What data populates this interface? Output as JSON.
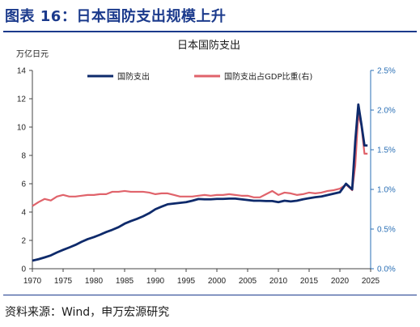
{
  "figure_title": "图表 16：日本国防支出规模上升",
  "source": "资料来源：Wind，申万宏源研究",
  "colors": {
    "spending": "#0e2a6b",
    "ratio": "#e0636b",
    "right_axis": "#2a6fb5",
    "header": "#1b3a8c"
  },
  "chart_data": {
    "type": "line",
    "title": "日本国防支出",
    "left_axis": {
      "unit": "万亿日元",
      "min": 0,
      "max": 14,
      "ticks": [
        0,
        2,
        4,
        6,
        8,
        10,
        12,
        14
      ]
    },
    "right_axis": {
      "min": 0,
      "max": 2.5,
      "ticks": [
        "0.0%",
        "0.5%",
        "1.0%",
        "1.5%",
        "2.0%",
        "2.5%"
      ]
    },
    "x_axis": {
      "min": 1970,
      "max": 2025,
      "ticks": [
        1970,
        1975,
        1980,
        1985,
        1990,
        1995,
        2000,
        2005,
        2010,
        2015,
        2020,
        2025
      ]
    },
    "legend_position": "top",
    "series": [
      {
        "name": "国防支出",
        "axis": "left",
        "x": [
          1970,
          1971,
          1972,
          1973,
          1974,
          1975,
          1976,
          1977,
          1978,
          1979,
          1980,
          1981,
          1982,
          1983,
          1984,
          1985,
          1986,
          1987,
          1988,
          1989,
          1990,
          1991,
          1992,
          1993,
          1994,
          1995,
          1996,
          1997,
          1998,
          1999,
          2000,
          2001,
          2002,
          2003,
          2004,
          2005,
          2006,
          2007,
          2008,
          2009,
          2010,
          2011,
          2012,
          2013,
          2014,
          2015,
          2016,
          2017,
          2018,
          2019,
          2020,
          2021,
          2022,
          2022.5,
          2023,
          2023.5,
          2024,
          2024.5
        ],
        "values": [
          0.57,
          0.67,
          0.8,
          0.94,
          1.15,
          1.33,
          1.5,
          1.68,
          1.9,
          2.09,
          2.23,
          2.4,
          2.59,
          2.75,
          2.93,
          3.18,
          3.36,
          3.52,
          3.7,
          3.92,
          4.2,
          4.38,
          4.55,
          4.6,
          4.65,
          4.7,
          4.8,
          4.92,
          4.9,
          4.9,
          4.93,
          4.93,
          4.95,
          4.95,
          4.9,
          4.85,
          4.8,
          4.8,
          4.78,
          4.78,
          4.7,
          4.8,
          4.75,
          4.8,
          4.9,
          4.98,
          5.05,
          5.1,
          5.2,
          5.3,
          5.4,
          6.0,
          5.6,
          9.0,
          11.6,
          10.2,
          8.7,
          8.7
        ]
      },
      {
        "name": "国防支出占GDP比重(右)",
        "axis": "right",
        "x": [
          1970,
          1971,
          1972,
          1973,
          1974,
          1975,
          1976,
          1977,
          1978,
          1979,
          1980,
          1981,
          1982,
          1983,
          1984,
          1985,
          1986,
          1987,
          1988,
          1989,
          1990,
          1991,
          1992,
          1993,
          1994,
          1995,
          1996,
          1997,
          1998,
          1999,
          2000,
          2001,
          2002,
          2003,
          2004,
          2005,
          2006,
          2007,
          2008,
          2009,
          2010,
          2011,
          2012,
          2013,
          2014,
          2015,
          2016,
          2017,
          2018,
          2019,
          2020,
          2021,
          2022,
          2022.5,
          2023,
          2023.5,
          2024,
          2024.5
        ],
        "values": [
          0.79,
          0.84,
          0.88,
          0.86,
          0.91,
          0.93,
          0.91,
          0.91,
          0.92,
          0.93,
          0.93,
          0.94,
          0.94,
          0.97,
          0.97,
          0.98,
          0.97,
          0.97,
          0.97,
          0.96,
          0.94,
          0.95,
          0.95,
          0.93,
          0.91,
          0.91,
          0.91,
          0.92,
          0.93,
          0.92,
          0.93,
          0.93,
          0.94,
          0.93,
          0.92,
          0.92,
          0.9,
          0.9,
          0.94,
          0.98,
          0.93,
          0.96,
          0.95,
          0.93,
          0.94,
          0.96,
          0.95,
          0.96,
          0.98,
          0.99,
          1.01,
          1.06,
          0.99,
          1.3,
          1.95,
          1.8,
          1.45,
          1.45
        ]
      }
    ]
  }
}
